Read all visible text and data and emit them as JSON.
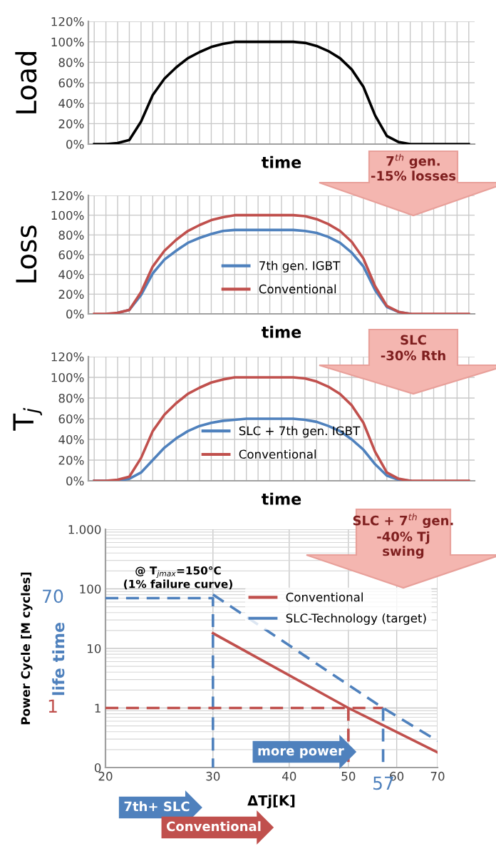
{
  "chart_data": [
    {
      "type": "line",
      "ylabel": "Load",
      "xlabel": "time",
      "categories": [
        null,
        null,
        null,
        null,
        null,
        null,
        null,
        null,
        null,
        null,
        null,
        null,
        null,
        null,
        null,
        null,
        null,
        null,
        null,
        null,
        null,
        null,
        null,
        null,
        null,
        null,
        null,
        null,
        null,
        null,
        null,
        null,
        null
      ],
      "series": [
        {
          "color": "#000000",
          "values": [
            0,
            0,
            1,
            4,
            22,
            48,
            64,
            75,
            84,
            90,
            95,
            98,
            100,
            100,
            100,
            100,
            100,
            100,
            99,
            96,
            91,
            84,
            73,
            56,
            28,
            8,
            2,
            0,
            0,
            0,
            0,
            0,
            0
          ]
        }
      ],
      "ylim": [
        0,
        120
      ],
      "yticks": [
        {
          "value": 0,
          "label": "0%"
        },
        {
          "value": 20,
          "label": "20%"
        },
        {
          "value": 40,
          "label": "40%"
        },
        {
          "value": 60,
          "label": "60%"
        },
        {
          "value": 80,
          "label": "80%"
        },
        {
          "value": 100,
          "label": "100%"
        },
        {
          "value": 120,
          "label": "120%"
        }
      ],
      "grid": true
    },
    {
      "type": "line",
      "ylabel": "Loss",
      "xlabel": "time",
      "categories": [
        null,
        null,
        null,
        null,
        null,
        null,
        null,
        null,
        null,
        null,
        null,
        null,
        null,
        null,
        null,
        null,
        null,
        null,
        null,
        null,
        null,
        null,
        null,
        null,
        null,
        null,
        null,
        null,
        null,
        null,
        null,
        null,
        null
      ],
      "series": [
        {
          "name": "7th gen. IGBT",
          "color": "#4f81bd",
          "values": [
            null,
            null,
            1,
            4,
            19,
            41,
            55,
            64,
            72,
            77,
            81,
            84,
            85,
            85,
            85,
            85,
            85,
            85,
            84,
            82,
            78,
            72,
            62,
            48,
            24,
            7,
            2,
            0,
            null,
            null,
            null,
            null,
            null
          ]
        },
        {
          "name": "Conventional",
          "color": "#c0504d",
          "values": [
            0,
            0,
            1,
            4,
            22,
            48,
            64,
            75,
            84,
            90,
            95,
            98,
            100,
            100,
            100,
            100,
            100,
            100,
            99,
            96,
            91,
            84,
            73,
            56,
            28,
            8,
            2,
            0,
            0,
            0,
            0,
            0,
            0
          ]
        }
      ],
      "ylim": [
        0,
        120
      ],
      "yticks": [
        {
          "value": 0,
          "label": "0%"
        },
        {
          "value": 20,
          "label": "20%"
        },
        {
          "value": 40,
          "label": "40%"
        },
        {
          "value": 60,
          "label": "60%"
        },
        {
          "value": 80,
          "label": "80%"
        },
        {
          "value": 100,
          "label": "100%"
        },
        {
          "value": 120,
          "label": "120%"
        }
      ],
      "grid": true,
      "legend": "center",
      "annotations": [
        "7$^{th}$ gen.",
        "-15% losses"
      ]
    },
    {
      "type": "line",
      "ylabel": "T$_{j}$",
      "xlabel": "time",
      "categories": [
        null,
        null,
        null,
        null,
        null,
        null,
        null,
        null,
        null,
        null,
        null,
        null,
        null,
        null,
        null,
        null,
        null,
        null,
        null,
        null,
        null,
        null,
        null,
        null,
        null,
        null,
        null,
        null,
        null,
        null,
        null,
        null,
        null
      ],
      "series": [
        {
          "name": "SLC + 7th gen. IGBT",
          "color": "#4f81bd",
          "values": [
            0,
            0,
            0,
            2,
            8,
            20,
            32,
            41,
            48,
            53,
            56,
            58,
            59,
            60,
            60,
            60,
            60,
            60,
            59,
            57,
            53,
            48,
            40,
            30,
            16,
            5,
            1,
            0,
            null,
            null,
            null,
            null,
            null
          ]
        },
        {
          "name": "Conventional",
          "color": "#c0504d",
          "values": [
            0,
            0,
            1,
            4,
            22,
            48,
            64,
            75,
            84,
            90,
            95,
            98,
            100,
            100,
            100,
            100,
            100,
            100,
            99,
            96,
            91,
            84,
            73,
            56,
            28,
            8,
            2,
            0,
            0,
            0,
            0,
            0,
            0
          ]
        }
      ],
      "ylim": [
        0,
        120
      ],
      "yticks": [
        {
          "value": 0,
          "label": "0%"
        },
        {
          "value": 20,
          "label": "20%"
        },
        {
          "value": 40,
          "label": "40%"
        },
        {
          "value": 60,
          "label": "60%"
        },
        {
          "value": 80,
          "label": "80%"
        },
        {
          "value": 100,
          "label": "100%"
        },
        {
          "value": 120,
          "label": "120%"
        }
      ],
      "grid": true,
      "legend": "center",
      "annotations": [
        "SLC",
        "-30% Rth"
      ]
    },
    {
      "type": "line",
      "ylabel": "Power Cycle [M cycles]",
      "xlabel": "ΔTj[K]",
      "log": "xy",
      "series": [
        {
          "name": "Conventional",
          "color": "#c0504d",
          "x": [
            30,
            50,
            70
          ],
          "values": [
            18,
            1,
            0.18
          ]
        },
        {
          "name": "SLC-Technology (target)",
          "color": "#4f81bd",
          "line_style": "dashed",
          "x": [
            30,
            57,
            70
          ],
          "values": [
            80,
            1,
            0.28
          ]
        },
        {
          "color": "#4f81bd",
          "line_style": "dashed",
          "x": [
            20,
            30,
            30
          ],
          "values": [
            70,
            70,
            0.1
          ]
        },
        {
          "color": "#c0504d",
          "line_style": "dashed",
          "x": [
            20,
            57
          ],
          "values": [
            1,
            1
          ]
        },
        {
          "color": "#c0504d",
          "line_style": "dashed",
          "x": [
            50,
            50
          ],
          "values": [
            1,
            0.1
          ]
        },
        {
          "color": "#4f81bd",
          "line_style": "dashed",
          "x": [
            57,
            57
          ],
          "values": [
            1,
            0.1
          ]
        }
      ],
      "xlim": [
        20,
        70
      ],
      "xticks": [
        20,
        30,
        40,
        50,
        60,
        70
      ],
      "ylim": [
        0.1,
        1000
      ],
      "yticks": [
        {
          "value": 0.1,
          "label": "0"
        },
        1,
        10,
        100,
        {
          "value": 1000,
          "label": "1.000"
        }
      ],
      "grid": true,
      "legend": "top right",
      "annotations": [
        "SLC + 7$^{th}$ gen.",
        "-40% Tj\nswing",
        "@ T$_{jmax}$=150°C",
        "(1% failure curve)",
        "70",
        "1",
        "57",
        "life time",
        "more power",
        "7th+ SLC",
        "Conventional"
      ]
    }
  ]
}
